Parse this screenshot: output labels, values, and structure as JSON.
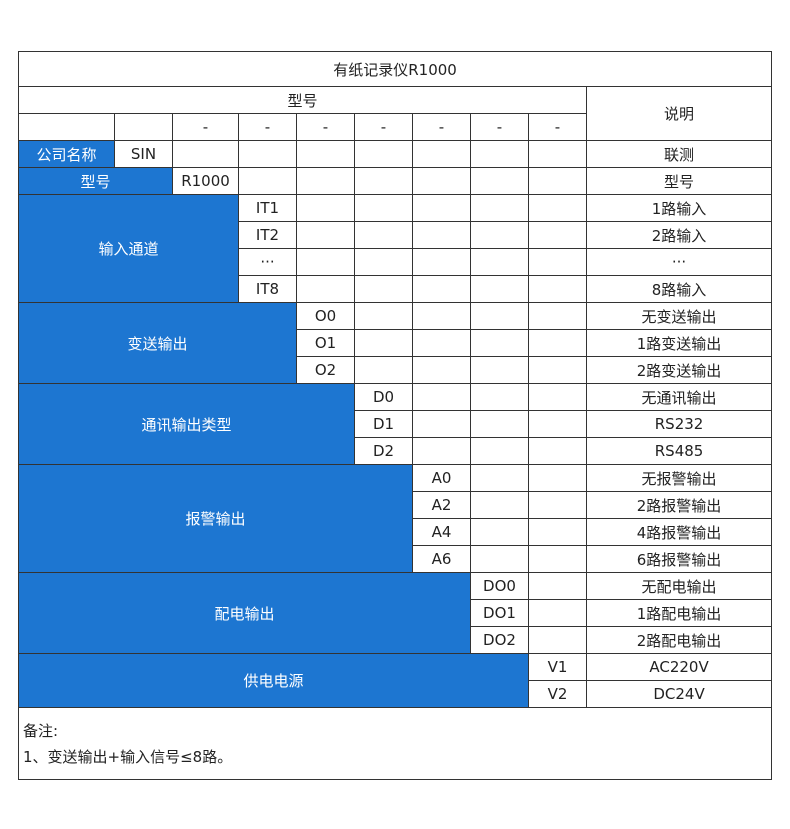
{
  "title": "有纸记录仪R1000",
  "header": {
    "model": "型号",
    "description": "说明",
    "dashes": [
      "-",
      "-",
      "-",
      "-",
      "-",
      "-",
      "-"
    ]
  },
  "company": {
    "label": "公司名称",
    "code": "SIN",
    "description": "联测"
  },
  "model": {
    "label": "型号",
    "code": "R1000",
    "description": "型号"
  },
  "groups": [
    {
      "label": "输入通道",
      "options": [
        {
          "code": "IT1",
          "description": "1路输入"
        },
        {
          "code": "IT2",
          "description": "2路输入"
        },
        {
          "code": "···",
          "description": "···"
        },
        {
          "code": "IT8",
          "description": "8路输入"
        }
      ]
    },
    {
      "label": "变送输出",
      "options": [
        {
          "code": "O0",
          "description": "无变送输出"
        },
        {
          "code": "O1",
          "description": "1路变送输出"
        },
        {
          "code": "O2",
          "description": "2路变送输出"
        }
      ]
    },
    {
      "label": "通讯输出类型",
      "options": [
        {
          "code": "D0",
          "description": "无通讯输出"
        },
        {
          "code": "D1",
          "description": "RS232"
        },
        {
          "code": "D2",
          "description": "RS485"
        }
      ]
    },
    {
      "label": "报警输出",
      "options": [
        {
          "code": "A0",
          "description": "无报警输出"
        },
        {
          "code": "A2",
          "description": "2路报警输出"
        },
        {
          "code": "A4",
          "description": "4路报警输出"
        },
        {
          "code": "A6",
          "description": "6路报警输出"
        }
      ]
    },
    {
      "label": "配电输出",
      "options": [
        {
          "code": "DO0",
          "description": "无配电输出"
        },
        {
          "code": "DO1",
          "description": "1路配电输出"
        },
        {
          "code": "DO2",
          "description": "2路配电输出"
        }
      ]
    },
    {
      "label": "供电电源",
      "options": [
        {
          "code": "V1",
          "description": "AC220V"
        },
        {
          "code": "V2",
          "description": "DC24V"
        }
      ]
    }
  ],
  "notes": {
    "title": "备注:",
    "items": [
      "1、变送输出+输入信号≤8路。"
    ]
  }
}
